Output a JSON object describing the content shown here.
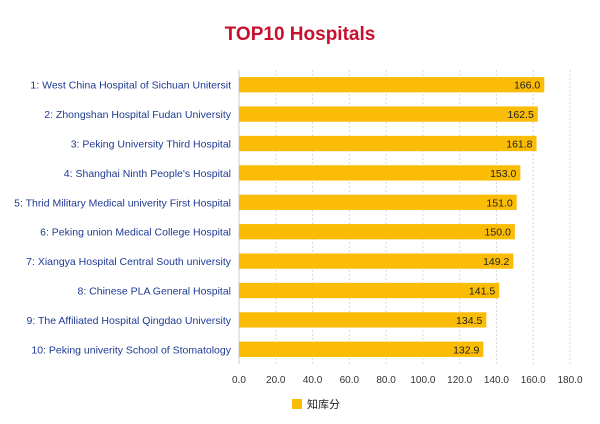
{
  "chart_data": {
    "type": "bar",
    "orientation": "horizontal",
    "title": "TOP10 Hospitals",
    "categories": [
      "1: West China Hospital of Sichuan Unitersit",
      "2: Zhongshan Hospital Fudan University",
      "3: Peking University Third Hospital",
      "4: Shanghai Ninth People's Hospital",
      "5: Thrid Military Medical univerity First Hospital",
      "6: Peking union Medical College Hospital",
      "7: Xiangya Hospital Central South university",
      "8: Chinese PLA General Hospital",
      "9: The Affiliated Hospital Qingdao University",
      "10: Peking univerity School of Stomatology"
    ],
    "series": [
      {
        "name": "知库分",
        "color": "#fbbc05",
        "values": [
          166.0,
          162.5,
          161.8,
          153.0,
          151.0,
          150.0,
          149.2,
          141.5,
          134.5,
          132.9
        ],
        "labels": [
          "166.0",
          "162.5",
          "161.8",
          "153.0",
          "151.0",
          "150.0",
          "149.2",
          "141.5",
          "134.5",
          "132.9"
        ]
      }
    ],
    "xlim": [
      0,
      180
    ],
    "xticks": [
      "0.0",
      "20.0",
      "40.0",
      "60.0",
      "80.0",
      "100.0",
      "120.0",
      "140.0",
      "160.0",
      "180.0"
    ],
    "xtick_values": [
      0,
      20,
      40,
      60,
      80,
      100,
      120,
      140,
      160,
      180
    ],
    "grid": "vertical",
    "legend_position": "bottom"
  }
}
